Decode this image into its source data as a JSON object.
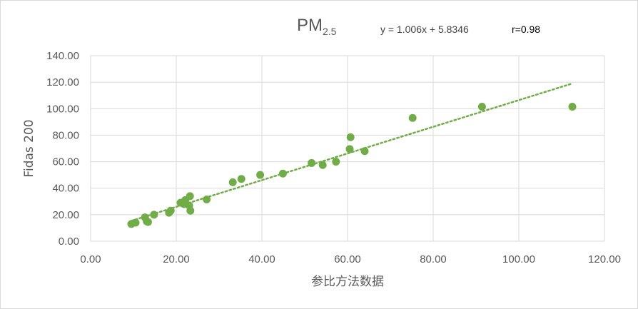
{
  "chart_data": {
    "type": "scatter",
    "title_main": "PM",
    "title_sub": "2.5",
    "equation": "y = 1.006x + 5.8346",
    "r_label": "r=0.98",
    "xlabel": "参比方法数据",
    "ylabel": "Fidas 200",
    "xlim": [
      0,
      120
    ],
    "ylim": [
      0,
      140
    ],
    "x_ticks": [
      "0.00",
      "20.00",
      "40.00",
      "60.00",
      "80.00",
      "100.00",
      "120.00"
    ],
    "y_ticks": [
      "0.00",
      "20.00",
      "40.00",
      "60.00",
      "80.00",
      "100.00",
      "120.00",
      "140.00"
    ],
    "grid": true,
    "colors": {
      "point": "#70ad47",
      "trend": "#70ad47",
      "grid": "#d9d9d9"
    },
    "trendline": {
      "slope": 1.006,
      "intercept": 5.8346,
      "x_range": [
        9.5,
        112.5
      ],
      "style": "dotted"
    },
    "points": [
      {
        "x": 9.5,
        "y": 13
      },
      {
        "x": 10.5,
        "y": 14
      },
      {
        "x": 12.7,
        "y": 18
      },
      {
        "x": 13.1,
        "y": 15
      },
      {
        "x": 13.4,
        "y": 14.5
      },
      {
        "x": 14.8,
        "y": 20
      },
      {
        "x": 18.3,
        "y": 21.5
      },
      {
        "x": 18.7,
        "y": 23
      },
      {
        "x": 21,
        "y": 29
      },
      {
        "x": 21.8,
        "y": 28
      },
      {
        "x": 22.1,
        "y": 31
      },
      {
        "x": 23,
        "y": 27
      },
      {
        "x": 23.2,
        "y": 34
      },
      {
        "x": 23.3,
        "y": 23
      },
      {
        "x": 27.1,
        "y": 31.5
      },
      {
        "x": 33.2,
        "y": 44.5
      },
      {
        "x": 35.2,
        "y": 47
      },
      {
        "x": 39.6,
        "y": 50
      },
      {
        "x": 44.9,
        "y": 51
      },
      {
        "x": 51.6,
        "y": 59
      },
      {
        "x": 54.2,
        "y": 57.5
      },
      {
        "x": 57.3,
        "y": 60
      },
      {
        "x": 60.5,
        "y": 69.5
      },
      {
        "x": 60.7,
        "y": 78.5
      },
      {
        "x": 64,
        "y": 68
      },
      {
        "x": 75.2,
        "y": 93
      },
      {
        "x": 91.4,
        "y": 101.5
      },
      {
        "x": 112.5,
        "y": 101.5
      }
    ]
  }
}
